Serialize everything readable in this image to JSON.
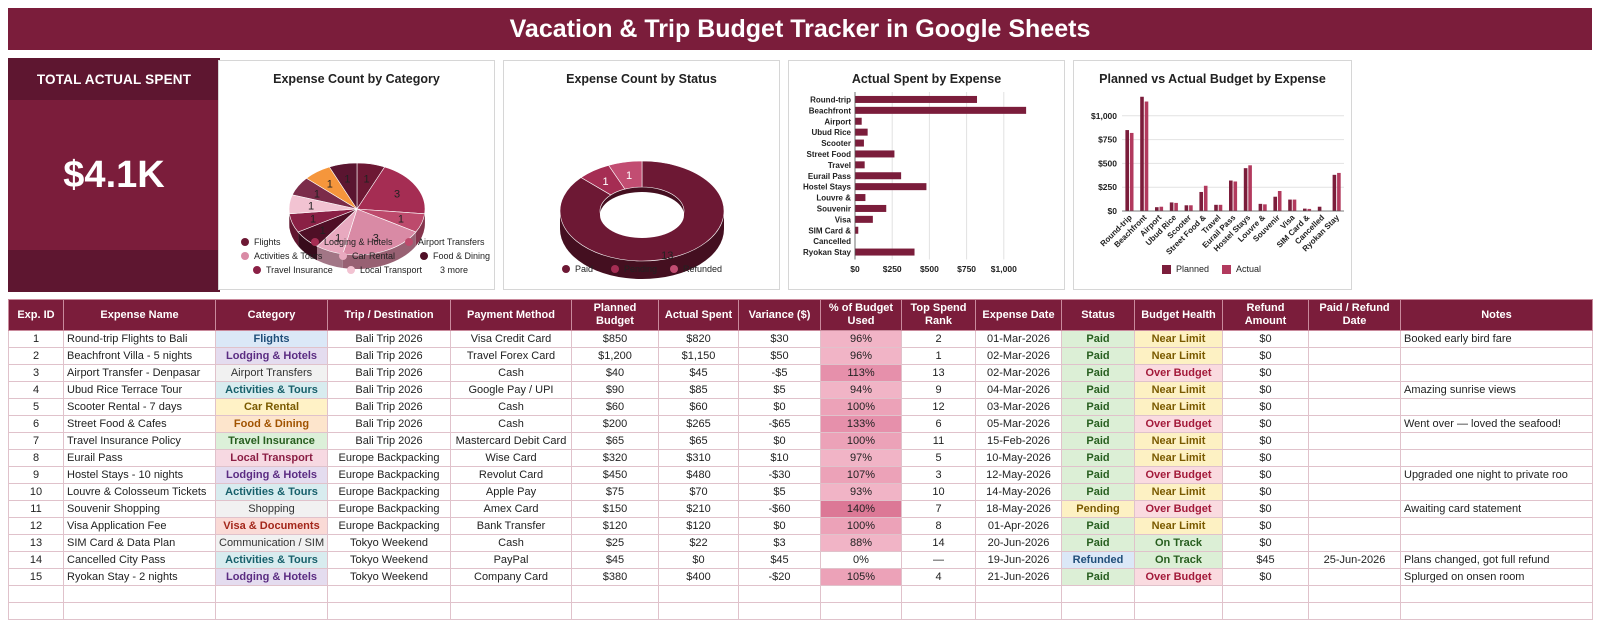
{
  "title": "Vacation & Trip Budget Tracker in Google Sheets",
  "kpi": {
    "label": "TOTAL ACTUAL SPENT",
    "value": "$4.1K"
  },
  "colors": {
    "primary": "#7b1d3b",
    "dark": "#5e1630",
    "chart1": "#7b1d3b",
    "chart2": "#b23a5e"
  },
  "chart_data": [
    {
      "type": "pie",
      "title": "Expense Count by Category",
      "slices": [
        {
          "name": "Flights",
          "value": 1,
          "color": "#6d1834"
        },
        {
          "name": "Lodging & Hotels",
          "value": 3,
          "color": "#a52d53"
        },
        {
          "name": "Airport Transfers",
          "value": 1,
          "color": "#bd4a6c"
        },
        {
          "name": "Activities & Tours",
          "value": 3,
          "color": "#d98aa5"
        },
        {
          "name": "Car Rental",
          "value": 1,
          "color": "#e8a9bf"
        },
        {
          "name": "Food & Dining",
          "value": 1,
          "color": "#4f0f26"
        },
        {
          "name": "Travel Insurance",
          "value": 1,
          "color": "#8a2045"
        },
        {
          "name": "Local Transport",
          "value": 1,
          "color": "#f2c3d2"
        },
        {
          "name": "Visa & Documents",
          "value": 1,
          "color": "#7b2c4a"
        },
        {
          "name": "Communication / SIM",
          "value": 1,
          "color": "#f5963c"
        },
        {
          "name": "Shopping",
          "value": 1,
          "color": "#5a1530"
        }
      ],
      "legend_more": "3 more"
    },
    {
      "type": "pie",
      "title": "Expense Count by Status",
      "slices": [
        {
          "name": "Paid",
          "value": 13,
          "color": "#6d1834"
        },
        {
          "name": "Pending",
          "value": 1,
          "color": "#a52d53"
        },
        {
          "name": "Refunded",
          "value": 1,
          "color": "#c24d72"
        }
      ]
    },
    {
      "type": "bar",
      "title": "Actual Spent by Expense",
      "categories": [
        "Round-trip",
        "Beachfront",
        "Airport",
        "Ubud Rice",
        "Scooter",
        "Street Food",
        "Travel",
        "Eurail Pass",
        "Hostel Stays",
        "Louvre &",
        "Souvenir",
        "Visa",
        "SIM Card &",
        "Cancelled",
        "Ryokan Stay"
      ],
      "values": [
        820,
        1150,
        45,
        85,
        60,
        265,
        65,
        310,
        480,
        70,
        210,
        120,
        22,
        0,
        400
      ],
      "xticks": [
        "$0",
        "$250",
        "$500",
        "$750",
        "$1,000"
      ],
      "xlim": [
        0,
        1250
      ]
    },
    {
      "type": "bar",
      "title": "Planned vs Actual Budget by Expense",
      "categories": [
        "Round-trip",
        "Beachfront",
        "Airport",
        "Ubud Rice",
        "Scooter",
        "Street Food &",
        "Travel",
        "Eurail Pass",
        "Hostel Stays",
        "Louvre &",
        "Souvenir",
        "Visa",
        "SIM Card &",
        "Cancelled",
        "Ryokan Stay"
      ],
      "series": [
        {
          "name": "Planned",
          "values": [
            850,
            1200,
            40,
            90,
            60,
            200,
            65,
            320,
            450,
            75,
            150,
            120,
            25,
            45,
            380
          ]
        },
        {
          "name": "Actual",
          "values": [
            820,
            1150,
            45,
            85,
            60,
            265,
            65,
            310,
            480,
            70,
            210,
            120,
            22,
            0,
            400
          ]
        }
      ],
      "yticks": [
        "$0",
        "$250",
        "$500",
        "$750",
        "$1,000"
      ],
      "ylim": [
        0,
        1250
      ]
    }
  ],
  "table": {
    "headers": [
      "Exp. ID",
      "Expense Name",
      "Category",
      "Trip / Destination",
      "Payment Method",
      "Planned Budget",
      "Actual Spent",
      "Variance ($)",
      "% of Budget Used",
      "Top Spend Rank",
      "Expense Date",
      "Status",
      "Budget Health",
      "Refund Amount",
      "Paid / Refund Date",
      "Notes"
    ],
    "rows": [
      {
        "id": "1",
        "name": "Round-trip Flights to Bali",
        "cat": "Flights",
        "catc": "b-flights",
        "trip": "Bali Trip 2026",
        "pay": "Visa Credit Card",
        "plan": "$850",
        "act": "$820",
        "var": "$30",
        "pct": "96%",
        "pcv": 96,
        "rank": "2",
        "date": "01-Mar-2026",
        "status": "Paid",
        "stc": "st-paid",
        "health": "Near Limit",
        "hc": "h-near",
        "refund": "$0",
        "rdate": "",
        "notes": "Booked early bird fare"
      },
      {
        "id": "2",
        "name": "Beachfront Villa - 5 nights",
        "cat": "Lodging & Hotels",
        "catc": "b-lodging",
        "trip": "Bali Trip 2026",
        "pay": "Travel Forex Card",
        "plan": "$1,200",
        "act": "$1,150",
        "var": "$50",
        "pct": "96%",
        "pcv": 96,
        "rank": "1",
        "date": "02-Mar-2026",
        "status": "Paid",
        "stc": "st-paid",
        "health": "Near Limit",
        "hc": "h-near",
        "refund": "$0",
        "rdate": "",
        "notes": ""
      },
      {
        "id": "3",
        "name": "Airport Transfer - Denpasar",
        "cat": "Airport Transfers",
        "catc": "b-airport",
        "trip": "Bali Trip 2026",
        "pay": "Cash",
        "plan": "$40",
        "act": "$45",
        "var": "-$5",
        "pct": "113%",
        "pcv": 113,
        "rank": "13",
        "date": "02-Mar-2026",
        "status": "Paid",
        "stc": "st-paid",
        "health": "Over Budget",
        "hc": "h-over",
        "refund": "$0",
        "rdate": "",
        "notes": ""
      },
      {
        "id": "4",
        "name": "Ubud Rice Terrace Tour",
        "cat": "Activities & Tours",
        "catc": "b-activities",
        "trip": "Bali Trip 2026",
        "pay": "Google Pay / UPI",
        "plan": "$90",
        "act": "$85",
        "var": "$5",
        "pct": "94%",
        "pcv": 94,
        "rank": "9",
        "date": "04-Mar-2026",
        "status": "Paid",
        "stc": "st-paid",
        "health": "Near Limit",
        "hc": "h-near",
        "refund": "$0",
        "rdate": "",
        "notes": "Amazing sunrise views"
      },
      {
        "id": "5",
        "name": "Scooter Rental - 7 days",
        "cat": "Car Rental",
        "catc": "b-car",
        "trip": "Bali Trip 2026",
        "pay": "Cash",
        "plan": "$60",
        "act": "$60",
        "var": "$0",
        "pct": "100%",
        "pcv": 100,
        "rank": "12",
        "date": "03-Mar-2026",
        "status": "Paid",
        "stc": "st-paid",
        "health": "Near Limit",
        "hc": "h-near",
        "refund": "$0",
        "rdate": "",
        "notes": ""
      },
      {
        "id": "6",
        "name": "Street Food & Cafes",
        "cat": "Food & Dining",
        "catc": "b-food",
        "trip": "Bali Trip 2026",
        "pay": "Cash",
        "plan": "$200",
        "act": "$265",
        "var": "-$65",
        "pct": "133%",
        "pcv": 133,
        "rank": "6",
        "date": "05-Mar-2026",
        "status": "Paid",
        "stc": "st-paid",
        "health": "Over Budget",
        "hc": "h-over",
        "refund": "$0",
        "rdate": "",
        "notes": "Went over — loved the seafood!"
      },
      {
        "id": "7",
        "name": "Travel Insurance Policy",
        "cat": "Travel Insurance",
        "catc": "b-insurance",
        "trip": "Bali Trip 2026",
        "pay": "Mastercard Debit Card",
        "plan": "$65",
        "act": "$65",
        "var": "$0",
        "pct": "100%",
        "pcv": 100,
        "rank": "11",
        "date": "15-Feb-2026",
        "status": "Paid",
        "stc": "st-paid",
        "health": "Near Limit",
        "hc": "h-near",
        "refund": "$0",
        "rdate": "",
        "notes": ""
      },
      {
        "id": "8",
        "name": "Eurail Pass",
        "cat": "Local Transport",
        "catc": "b-local",
        "trip": "Europe Backpacking",
        "pay": "Wise Card",
        "plan": "$320",
        "act": "$310",
        "var": "$10",
        "pct": "97%",
        "pcv": 97,
        "rank": "5",
        "date": "10-May-2026",
        "status": "Paid",
        "stc": "st-paid",
        "health": "Near Limit",
        "hc": "h-near",
        "refund": "$0",
        "rdate": "",
        "notes": ""
      },
      {
        "id": "9",
        "name": "Hostel Stays - 10 nights",
        "cat": "Lodging & Hotels",
        "catc": "b-lodging",
        "trip": "Europe Backpacking",
        "pay": "Revolut Card",
        "plan": "$450",
        "act": "$480",
        "var": "-$30",
        "pct": "107%",
        "pcv": 107,
        "rank": "3",
        "date": "12-May-2026",
        "status": "Paid",
        "stc": "st-paid",
        "health": "Over Budget",
        "hc": "h-over",
        "refund": "$0",
        "rdate": "",
        "notes": "Upgraded one night to private roo"
      },
      {
        "id": "10",
        "name": "Louvre & Colosseum Tickets",
        "cat": "Activities & Tours",
        "catc": "b-activities",
        "trip": "Europe Backpacking",
        "pay": "Apple Pay",
        "plan": "$75",
        "act": "$70",
        "var": "$5",
        "pct": "93%",
        "pcv": 93,
        "rank": "10",
        "date": "14-May-2026",
        "status": "Paid",
        "stc": "st-paid",
        "health": "Near Limit",
        "hc": "h-near",
        "refund": "$0",
        "rdate": "",
        "notes": ""
      },
      {
        "id": "11",
        "name": "Souvenir Shopping",
        "cat": "Shopping",
        "catc": "b-shopping",
        "trip": "Europe Backpacking",
        "pay": "Amex Card",
        "plan": "$150",
        "act": "$210",
        "var": "-$60",
        "pct": "140%",
        "pcv": 140,
        "rank": "7",
        "date": "18-May-2026",
        "status": "Pending",
        "stc": "st-pending",
        "health": "Over Budget",
        "hc": "h-over",
        "refund": "$0",
        "rdate": "",
        "notes": "Awaiting card statement"
      },
      {
        "id": "12",
        "name": "Visa Application Fee",
        "cat": "Visa & Documents",
        "catc": "b-visa",
        "trip": "Europe Backpacking",
        "pay": "Bank Transfer",
        "plan": "$120",
        "act": "$120",
        "var": "$0",
        "pct": "100%",
        "pcv": 100,
        "rank": "8",
        "date": "01-Apr-2026",
        "status": "Paid",
        "stc": "st-paid",
        "health": "Near Limit",
        "hc": "h-near",
        "refund": "$0",
        "rdate": "",
        "notes": ""
      },
      {
        "id": "13",
        "name": "SIM Card & Data Plan",
        "cat": "Communication / SIM",
        "catc": "b-comm",
        "trip": "Tokyo Weekend",
        "pay": "Cash",
        "plan": "$25",
        "act": "$22",
        "var": "$3",
        "pct": "88%",
        "pcv": 88,
        "rank": "14",
        "date": "20-Jun-2026",
        "status": "Paid",
        "stc": "st-paid",
        "health": "On Track",
        "hc": "h-track",
        "refund": "$0",
        "rdate": "",
        "notes": ""
      },
      {
        "id": "14",
        "name": "Cancelled City Pass",
        "cat": "Activities & Tours",
        "catc": "b-activities",
        "trip": "Tokyo Weekend",
        "pay": "PayPal",
        "plan": "$45",
        "act": "$0",
        "var": "$45",
        "pct": "0%",
        "pcv": 0,
        "rank": "—",
        "date": "19-Jun-2026",
        "status": "Refunded",
        "stc": "st-refunded",
        "health": "On Track",
        "hc": "h-track",
        "refund": "$45",
        "rdate": "25-Jun-2026",
        "notes": "Plans changed, got full refund"
      },
      {
        "id": "15",
        "name": "Ryokan Stay - 2 nights",
        "cat": "Lodging & Hotels",
        "catc": "b-lodging",
        "trip": "Tokyo Weekend",
        "pay": "Company Card",
        "plan": "$380",
        "act": "$400",
        "var": "-$20",
        "pct": "105%",
        "pcv": 105,
        "rank": "4",
        "date": "21-Jun-2026",
        "status": "Paid",
        "stc": "st-paid",
        "health": "Over Budget",
        "hc": "h-over",
        "refund": "$0",
        "rdate": "",
        "notes": "Splurged on onsen room"
      }
    ],
    "empty_rows": 2
  }
}
